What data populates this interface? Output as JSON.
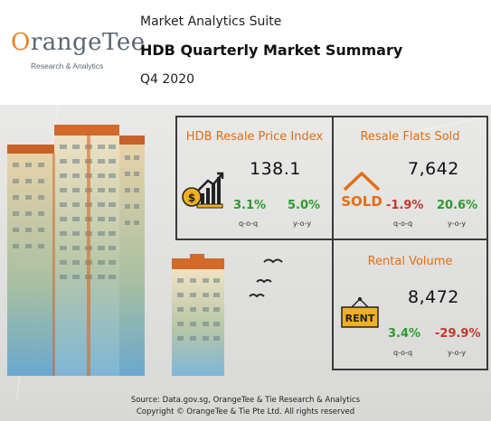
{
  "header": {
    "logo": {
      "wordmark": "OrangeTee",
      "tagline": "Research & Analytics"
    },
    "suite": "Market Analytics Suite",
    "title": "HDB Quarterly Market Summary",
    "period": "Q4 2020"
  },
  "panels": {
    "price_index": {
      "title": "HDB Resale Price Index",
      "value": "138.1",
      "qoq": "3.1%",
      "yoy": "5.0%",
      "qoq_label": "q-o-q",
      "yoy_label": "y-o-y",
      "icon": "money-growth-icon"
    },
    "flats_sold": {
      "title": "Resale Flats Sold",
      "value": "7,642",
      "qoq": "-1.9%",
      "yoy": "20.6%",
      "qoq_label": "q-o-q",
      "yoy_label": "y-o-y",
      "icon": "sold-house-icon",
      "icon_text": "SOLD"
    },
    "rental_volume": {
      "title": "Rental Volume",
      "value": "8,472",
      "qoq": "3.4%",
      "yoy": "-29.9%",
      "qoq_label": "q-o-q",
      "yoy_label": "y-o-y",
      "icon": "rent-sign-icon",
      "icon_text": "RENT"
    }
  },
  "footer": {
    "source": "Source: Data.gov.sg, OrangeTee & Tie Research & Analytics",
    "copyright": "Copyright © OrangeTee & Tie Pte Ltd. All rights reserved"
  },
  "colors": {
    "accent": "#e46e12",
    "positive": "#2d9a2d",
    "negative": "#c0392b",
    "building_top": "#d26a2a"
  }
}
